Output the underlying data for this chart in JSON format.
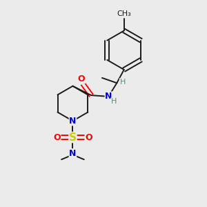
{
  "background_color": "#ebebeb",
  "bond_color": "#1a1a1a",
  "atom_colors": {
    "O": "#ff0000",
    "N": "#0000ee",
    "S": "#cccc00",
    "C": "#1a1a1a",
    "H": "#4a9090"
  },
  "figsize": [
    3.0,
    3.0
  ],
  "dpi": 100
}
